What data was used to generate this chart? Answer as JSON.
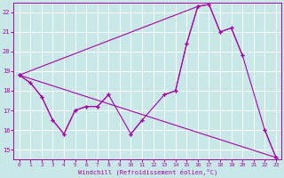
{
  "title": "",
  "xlabel": "Windchill (Refroidissement éolien,°C)",
  "xlim": [
    -0.5,
    23.5
  ],
  "ylim": [
    14.5,
    22.5
  ],
  "yticks": [
    15,
    16,
    17,
    18,
    19,
    20,
    21,
    22
  ],
  "xticks": [
    0,
    1,
    2,
    3,
    4,
    5,
    6,
    7,
    8,
    9,
    10,
    11,
    12,
    13,
    14,
    15,
    16,
    17,
    18,
    19,
    20,
    21,
    22,
    23
  ],
  "bg_color": "#c8e8e8",
  "line_color": "#aa00aa",
  "grid_color": "#ffffff",
  "series": [
    {
      "segments": [
        {
          "x": [
            0,
            1,
            2,
            3,
            4,
            5,
            6,
            7,
            8
          ],
          "y": [
            18.8,
            18.4,
            17.7,
            16.5,
            15.8,
            17.0,
            17.2,
            17.2,
            17.8
          ]
        },
        {
          "x": [
            10,
            11
          ],
          "y": [
            15.8,
            16.5
          ]
        },
        {
          "x": [
            13,
            14,
            15,
            16,
            17,
            18,
            19,
            20
          ],
          "y": [
            17.8,
            18.0,
            20.4,
            22.3,
            22.4,
            21.0,
            21.2,
            19.8
          ]
        },
        {
          "x": [
            22,
            23
          ],
          "y": [
            16.0,
            14.6
          ]
        }
      ]
    },
    {
      "x": [
        0,
        1,
        2,
        3,
        4,
        5,
        6,
        7,
        8,
        10,
        11,
        13,
        14,
        15,
        16,
        17,
        18,
        19,
        20,
        22,
        23
      ],
      "y": [
        18.8,
        18.4,
        17.7,
        16.5,
        15.8,
        17.0,
        17.2,
        17.2,
        17.8,
        15.8,
        16.5,
        17.8,
        18.0,
        20.4,
        22.3,
        22.4,
        21.0,
        21.2,
        19.8,
        16.0,
        14.6
      ]
    },
    {
      "x": [
        0,
        23
      ],
      "y": [
        18.8,
        14.6
      ]
    },
    {
      "x": [
        0,
        16
      ],
      "y": [
        18.8,
        22.3
      ]
    }
  ]
}
